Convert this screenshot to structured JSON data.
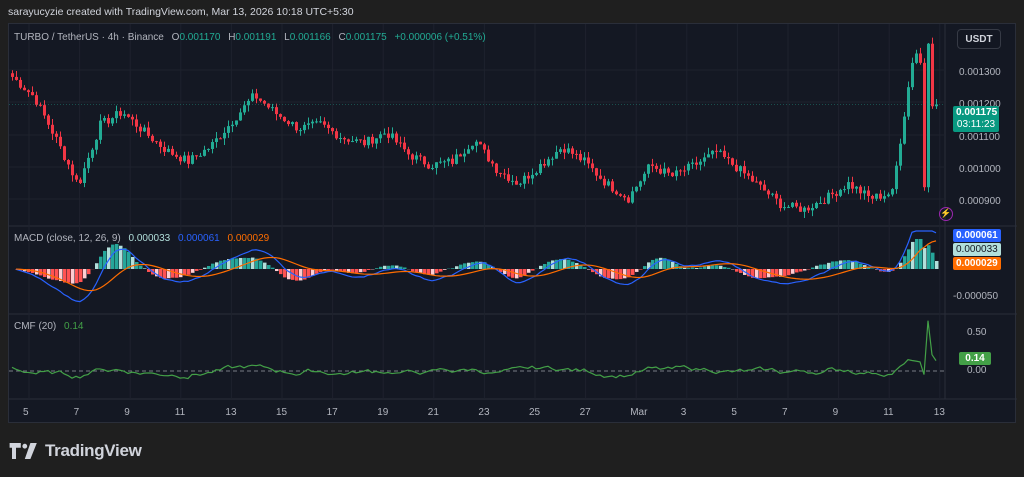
{
  "credit": "sarayucyzie created with TradingView.com, Mar 13, 2026 10:18 UTC+5:30",
  "header": {
    "symbol": "TURBO / TetherUS · 4h · Binance",
    "open_label": "O",
    "open": "0.001170",
    "high_label": "H",
    "high": "0.001191",
    "low_label": "L",
    "low": "0.001166",
    "close_label": "C",
    "close": "0.001175",
    "change": "+0.000006 (+0.51%)"
  },
  "currency_button": "USDT",
  "price_axis": {
    "labels": [
      "0.001300",
      "0.001200",
      "0.001100",
      "0.001000",
      "0.000900"
    ],
    "current_price": "0.001175",
    "countdown": "03:11:23"
  },
  "macd": {
    "title": "MACD (close, 12, 26, 9)",
    "histogram": "0.000033",
    "macd": "0.000061",
    "signal": "0.000029",
    "axis_labels": [
      "-0.000050"
    ]
  },
  "cmf": {
    "title": "CMF (20)",
    "value": "0.14",
    "axis_labels": [
      "0.50",
      "0.00"
    ]
  },
  "time_axis": [
    "5",
    "7",
    "9",
    "11",
    "13",
    "15",
    "17",
    "19",
    "21",
    "23",
    "25",
    "27",
    "Mar",
    "3",
    "5",
    "7",
    "9",
    "11",
    "13"
  ],
  "brand": "TradingView",
  "colors": {
    "up": "#22ab94",
    "down": "#f23645",
    "macd": "#2962ff",
    "signal": "#ff6d00",
    "cmf": "#43a047",
    "background": "#141823"
  },
  "chart_data": [
    {
      "type": "candlestick",
      "title": "TURBO / TetherUS · 4h · Binance",
      "xlabel": "",
      "ylabel": "USDT",
      "ylim": [
        0.00085,
        0.00138
      ],
      "x_ticks": [
        "5",
        "7",
        "9",
        "11",
        "13",
        "15",
        "17",
        "19",
        "21",
        "23",
        "25",
        "27",
        "Mar",
        "3",
        "5",
        "7",
        "9",
        "11",
        "13"
      ],
      "close_approx": [
        0.00125,
        0.001195,
        0.00108,
        0.000955,
        0.00112,
        0.001155,
        0.0011,
        0.00105,
        0.00102,
        0.00106,
        0.00113,
        0.0012,
        0.00115,
        0.00111,
        0.00112,
        0.001085,
        0.00107,
        0.0011,
        0.00104,
        0.00101,
        0.00102,
        0.00108,
        0.001,
        0.00096,
        0.00101,
        0.00106,
        0.00102,
        0.00096,
        0.00092,
        0.00101,
        0.00098,
        0.00101,
        0.001045,
        0.001,
        0.00095,
        0.0009,
        0.00089,
        0.00092,
        0.00096,
        0.00092,
        0.000935,
        0.00133,
        0.001175
      ],
      "last": {
        "open": 0.00117,
        "high": 0.001191,
        "low": 0.001166,
        "close": 0.001175
      }
    },
    {
      "type": "line",
      "title": "MACD (close, 12, 26, 9)",
      "series": [
        {
          "name": "MACD",
          "last": 6.1e-05
        },
        {
          "name": "Signal",
          "last": 2.9e-05
        },
        {
          "name": "Histogram",
          "last": 3.3e-05
        }
      ],
      "y_ticks": [
        "-0.000050"
      ]
    },
    {
      "type": "line",
      "title": "CMF (20)",
      "series": [
        {
          "name": "CMF",
          "last": 0.14
        }
      ],
      "y_ticks": [
        "0.50",
        "0.00"
      ],
      "peak_approx": 0.68
    }
  ]
}
